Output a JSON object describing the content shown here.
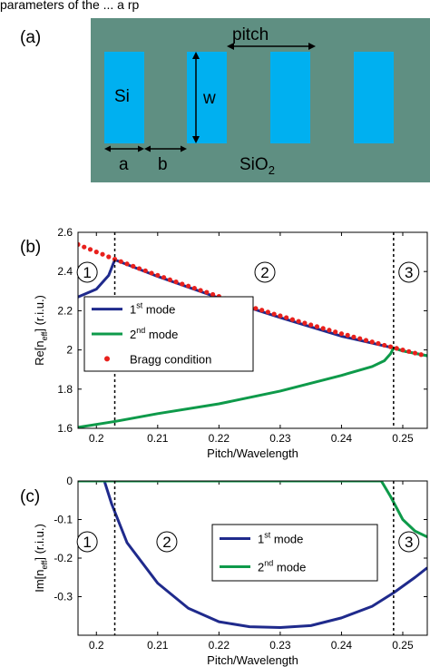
{
  "diagram": {
    "panel_label": "(a)",
    "substrate_label": "SiO",
    "substrate_subscript": "2",
    "core_label": "Si",
    "dim_labels": {
      "pitch": "pitch",
      "w": "w",
      "a": "a",
      "b": "b"
    },
    "colors": {
      "substrate": "#5f8f82",
      "core": "#00b0f0"
    }
  },
  "caption_fragment": "parameters of the ... a rp",
  "chart_data": [
    {
      "type": "line",
      "panel_label": "(b)",
      "xlabel": "Pitch/Wavelength",
      "ylabel_main": "Re[n",
      "ylabel_sub": "eff",
      "ylabel_tail": "] (r.i.u.)",
      "xlim": [
        0.197,
        0.254
      ],
      "ylim": [
        1.6,
        2.6
      ],
      "xticks": [
        0.2,
        0.21,
        0.22,
        0.23,
        0.24,
        0.25
      ],
      "xtick_labels": [
        "0.2",
        "0.21",
        "0.22",
        "0.23",
        "0.24",
        "0.25"
      ],
      "yticks": [
        1.6,
        1.8,
        2.0,
        2.2,
        2.4,
        2.6
      ],
      "ytick_labels": [
        "1.6",
        "1.8",
        "2",
        "2.2",
        "2.4",
        "2.6"
      ],
      "vlines": [
        0.203,
        0.2485
      ],
      "region_labels": [
        "1",
        "2",
        "3"
      ],
      "legend": {
        "placement": "center-left",
        "entries": [
          {
            "base": "1",
            "sup": "st",
            "tail": " mode",
            "style": "line",
            "color": "#1f2a8c"
          },
          {
            "base": "2",
            "sup": "nd",
            "tail": " mode",
            "style": "line",
            "color": "#0e9a4a"
          },
          {
            "base": "Bragg condition",
            "sup": "",
            "tail": "",
            "style": "dot",
            "color": "#e8201c"
          }
        ]
      },
      "series": [
        {
          "label": "1st mode",
          "color": "#1f2a8c",
          "x": [
            0.197,
            0.2,
            0.202,
            0.203,
            0.21,
            0.22,
            0.23,
            0.24,
            0.2485,
            0.25,
            0.254
          ],
          "y": [
            2.27,
            2.31,
            2.38,
            2.46,
            2.375,
            2.265,
            2.165,
            2.07,
            2.01,
            1.995,
            1.97
          ]
        },
        {
          "label": "2nd mode",
          "color": "#0e9a4a",
          "x": [
            0.197,
            0.203,
            0.21,
            0.22,
            0.23,
            0.24,
            0.245,
            0.247,
            0.248,
            0.2485,
            0.25,
            0.254
          ],
          "y": [
            1.605,
            1.635,
            1.675,
            1.725,
            1.79,
            1.87,
            1.915,
            1.945,
            1.98,
            2.01,
            1.995,
            1.97
          ]
        },
        {
          "label": "Bragg condition",
          "color": "#e8201c",
          "marker": "dot",
          "x": [
            0.197,
            0.198,
            0.199,
            0.2,
            0.201,
            0.202,
            0.203,
            0.204,
            0.205,
            0.206,
            0.207,
            0.208,
            0.209,
            0.21,
            0.211,
            0.212,
            0.213,
            0.214,
            0.215,
            0.216,
            0.217,
            0.218,
            0.219,
            0.22,
            0.221,
            0.222,
            0.223,
            0.224,
            0.225,
            0.226,
            0.227,
            0.228,
            0.229,
            0.23,
            0.231,
            0.232,
            0.233,
            0.234,
            0.235,
            0.236,
            0.237,
            0.238,
            0.239,
            0.24,
            0.241,
            0.242,
            0.243,
            0.244,
            0.245,
            0.246,
            0.247,
            0.248,
            0.249,
            0.25,
            0.251,
            0.252,
            0.253
          ],
          "y": [
            2.538,
            2.525,
            2.513,
            2.5,
            2.488,
            2.475,
            2.463,
            2.451,
            2.439,
            2.427,
            2.415,
            2.404,
            2.392,
            2.381,
            2.37,
            2.358,
            2.347,
            2.336,
            2.326,
            2.315,
            2.304,
            2.294,
            2.283,
            2.273,
            2.262,
            2.252,
            2.242,
            2.232,
            2.222,
            2.212,
            2.203,
            2.193,
            2.183,
            2.174,
            2.165,
            2.155,
            2.146,
            2.137,
            2.128,
            2.119,
            2.11,
            2.101,
            2.092,
            2.083,
            2.075,
            2.066,
            2.058,
            2.049,
            2.041,
            2.033,
            2.024,
            2.016,
            2.008,
            2.0,
            1.992,
            1.984,
            1.976
          ]
        }
      ]
    },
    {
      "type": "line",
      "panel_label": "(c)",
      "xlabel": "Pitch/Wavelength",
      "ylabel_main": "Im[n",
      "ylabel_sub": "eff",
      "ylabel_tail": "] (r.i.u.)",
      "xlim": [
        0.197,
        0.254
      ],
      "ylim": [
        -0.4,
        0.0
      ],
      "xticks": [
        0.2,
        0.21,
        0.22,
        0.23,
        0.24,
        0.25
      ],
      "xtick_labels": [
        "0.2",
        "0.21",
        "0.22",
        "0.23",
        "0.24",
        "0.25"
      ],
      "yticks": [
        -0.3,
        -0.2,
        -0.1,
        0.0
      ],
      "ytick_labels": [
        "-0.3",
        "-0.2",
        "-0.1",
        "0"
      ],
      "vlines": [
        0.203,
        0.2485
      ],
      "region_labels": [
        "1",
        "2",
        "3"
      ],
      "legend": {
        "placement": "center-right",
        "entries": [
          {
            "base": "1",
            "sup": "st",
            "tail": " mode",
            "style": "line",
            "color": "#1f2a8c"
          },
          {
            "base": "2",
            "sup": "nd",
            "tail": " mode",
            "style": "line",
            "color": "#0e9a4a"
          }
        ]
      },
      "series": [
        {
          "label": "1st mode",
          "color": "#1f2a8c",
          "x": [
            0.197,
            0.2013,
            0.2025,
            0.205,
            0.21,
            0.215,
            0.22,
            0.225,
            0.23,
            0.235,
            0.24,
            0.245,
            0.2485,
            0.252,
            0.254
          ],
          "y": [
            0.0,
            0.0,
            -0.06,
            -0.16,
            -0.265,
            -0.33,
            -0.365,
            -0.378,
            -0.38,
            -0.375,
            -0.355,
            -0.325,
            -0.29,
            -0.25,
            -0.225
          ]
        },
        {
          "label": "2nd mode",
          "color": "#0e9a4a",
          "x": [
            0.197,
            0.2,
            0.21,
            0.22,
            0.23,
            0.24,
            0.2465,
            0.248,
            0.25,
            0.252,
            0.254
          ],
          "y": [
            0.0,
            0.0,
            0.0,
            0.0,
            0.0,
            0.0,
            0.0,
            -0.04,
            -0.1,
            -0.13,
            -0.145
          ]
        }
      ]
    }
  ]
}
